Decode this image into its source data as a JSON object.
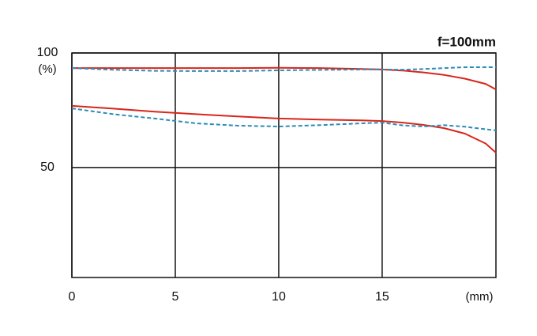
{
  "chart_data": {
    "type": "line",
    "title": "f=100mm",
    "x_label": "(mm)",
    "y_label": "(%)",
    "x": [
      0,
      2,
      4,
      6,
      8,
      10,
      12,
      14,
      15,
      16,
      17,
      18,
      19,
      20,
      20.5
    ],
    "series": [
      {
        "color": "#d8261c",
        "dash": false,
        "values": [
          93.4,
          93.4,
          93.4,
          93.4,
          93.4,
          93.5,
          93.4,
          93.0,
          92.8,
          92.3,
          91.5,
          90.4,
          88.8,
          86.5,
          84.1
        ]
      },
      {
        "color": "#2b8cb8",
        "dash": true,
        "values": [
          93.4,
          92.7,
          92.2,
          92.1,
          92.1,
          92.4,
          92.6,
          92.8,
          92.8,
          92.7,
          93.0,
          93.4,
          93.8,
          93.8,
          93.8
        ]
      },
      {
        "color": "#d8261c",
        "dash": false,
        "values": [
          76.9,
          75.7,
          74.4,
          73.3,
          72.3,
          71.4,
          70.9,
          70.6,
          70.3,
          69.6,
          68.6,
          67.2,
          64.8,
          60.5,
          56.5
        ]
      },
      {
        "color": "#2b8cb8",
        "dash": true,
        "values": [
          75.8,
          73.3,
          71.4,
          69.3,
          68.3,
          67.9,
          68.5,
          69.3,
          69.6,
          68.4,
          67.9,
          68.5,
          67.8,
          66.7,
          66.2
        ]
      }
    ],
    "xlim": [
      0,
      20.5
    ],
    "ylim": [
      2,
      100
    ],
    "xticks": [
      0,
      5,
      10,
      15
    ],
    "yticks": [
      50,
      100
    ],
    "grid": true
  }
}
